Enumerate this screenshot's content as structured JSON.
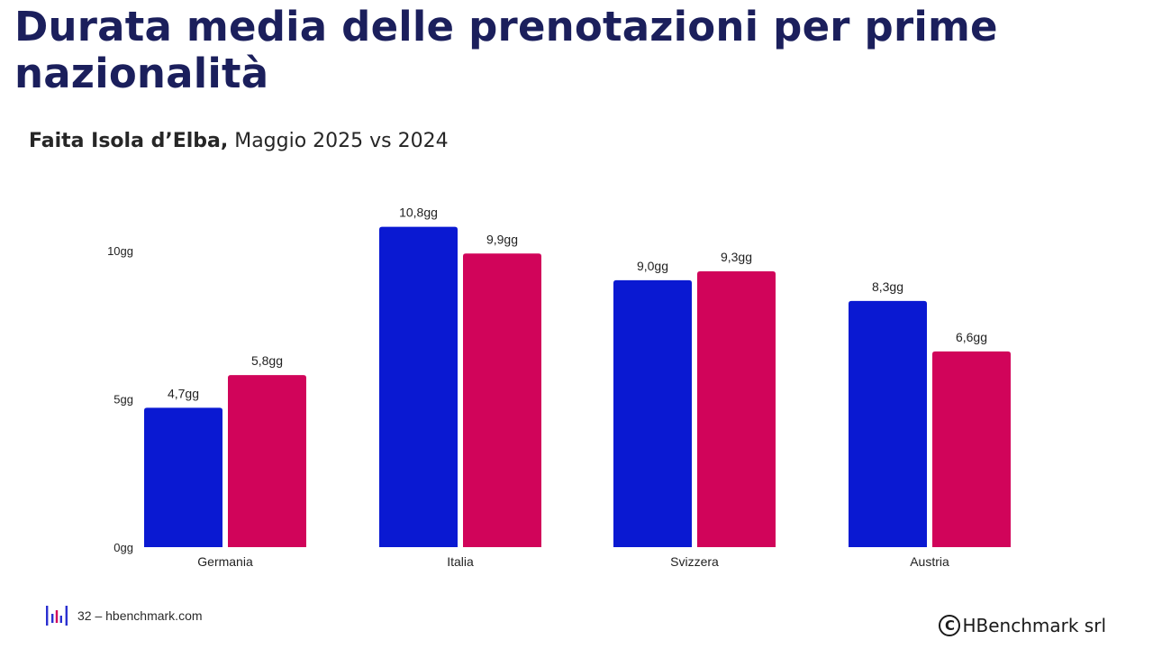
{
  "slide": {
    "title": "Durata media delle prenotazioni per prime nazionalità",
    "subtitle_bold": "Faita Isola d’Elba,",
    "subtitle_rest": " Maggio 2025 vs 2024"
  },
  "footer": {
    "page_link": "32 – hbenchmark.com",
    "copyright_symbol": "C",
    "company": "HBenchmark srl",
    "logo_icon": "hbenchmark-logo-icon"
  },
  "colors": {
    "series_2025": "#0a19d2",
    "series_2024": "#d1045a",
    "title": "#1b1f5c"
  },
  "chart_data": {
    "type": "bar",
    "title": "",
    "xlabel": "",
    "ylabel": "",
    "categories": [
      "Germania",
      "Italia",
      "Svizzera",
      "Austria"
    ],
    "series": [
      {
        "values": [
          4.7,
          10.8,
          9.0,
          8.3
        ],
        "labels": [
          "4,7gg",
          "10,8gg",
          "9,0gg",
          "8,3gg"
        ],
        "color": "#0a19d2"
      },
      {
        "values": [
          5.8,
          9.9,
          9.3,
          6.6
        ],
        "labels": [
          "5,8gg",
          "9,9gg",
          "9,3gg",
          "6,6gg"
        ],
        "color": "#d1045a"
      }
    ],
    "yticks": [
      0,
      5,
      10
    ],
    "ytick_labels": [
      "0gg",
      "5gg",
      "10gg"
    ],
    "ylim": [
      0,
      11
    ],
    "grid": false,
    "legend": "none"
  }
}
